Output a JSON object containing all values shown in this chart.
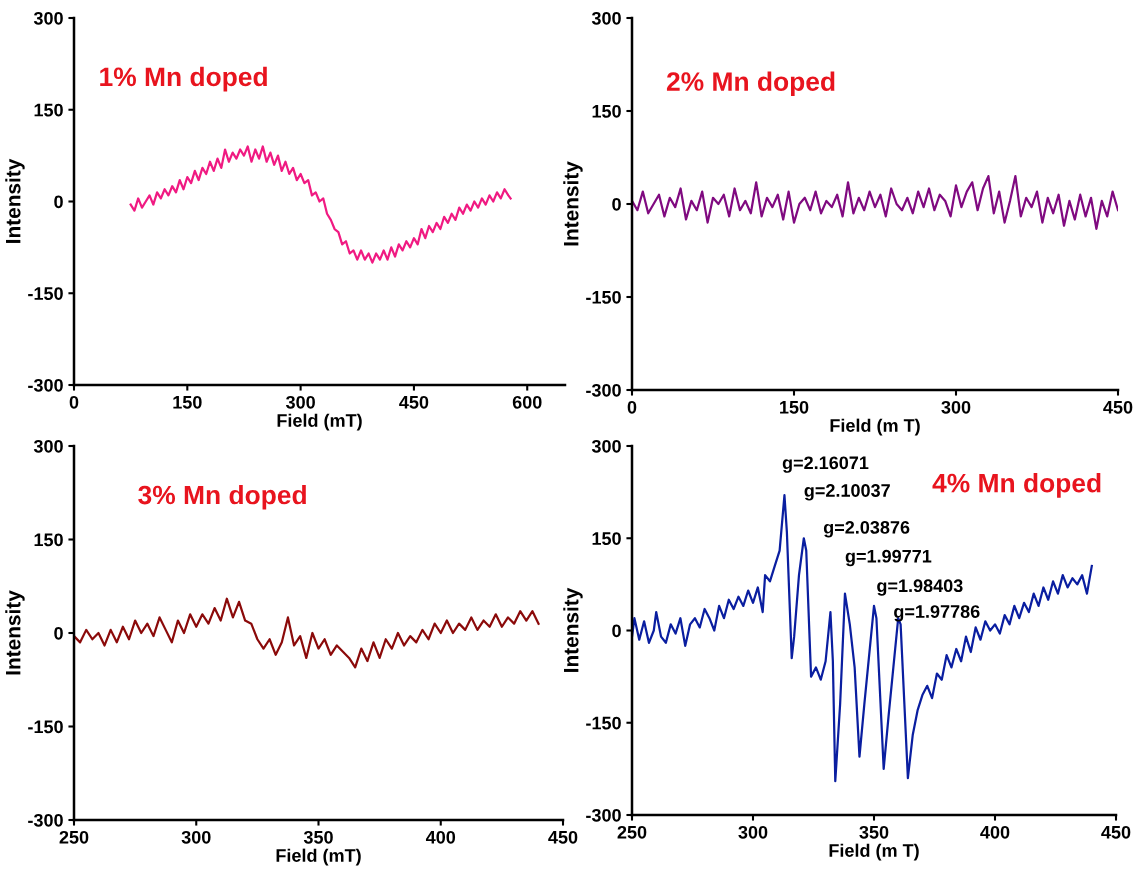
{
  "chart_data": [
    {
      "type": "line",
      "title": "1% Mn doped",
      "xlabel": "Field (mT)",
      "ylabel": "Intensity",
      "xlim": [
        0,
        650
      ],
      "xticks": [
        0,
        150,
        300,
        450,
        600
      ],
      "ylim": [
        -300,
        300
      ],
      "yticks": [
        -300,
        -150,
        0,
        150,
        300
      ],
      "grid": false,
      "legend": false,
      "marker": "none",
      "line_style": "solid",
      "series": [
        {
          "color": "#f01a82",
          "x": [
            75,
            80,
            85,
            90,
            95,
            100,
            105,
            110,
            115,
            120,
            125,
            130,
            135,
            140,
            145,
            150,
            155,
            160,
            165,
            170,
            175,
            180,
            185,
            190,
            195,
            200,
            205,
            210,
            215,
            220,
            225,
            230,
            235,
            240,
            245,
            250,
            255,
            260,
            265,
            270,
            275,
            280,
            285,
            290,
            295,
            300,
            305,
            310,
            315,
            320,
            325,
            330,
            335,
            340,
            345,
            350,
            355,
            360,
            365,
            370,
            375,
            380,
            385,
            390,
            395,
            400,
            405,
            410,
            415,
            420,
            425,
            430,
            435,
            440,
            445,
            450,
            455,
            460,
            465,
            470,
            475,
            480,
            485,
            490,
            495,
            500,
            505,
            510,
            515,
            520,
            525,
            530,
            535,
            540,
            545,
            550,
            555,
            560,
            565,
            570,
            575,
            578
          ],
          "values": [
            -5,
            -15,
            5,
            -10,
            0,
            10,
            -5,
            15,
            5,
            20,
            10,
            25,
            15,
            35,
            20,
            40,
            30,
            50,
            35,
            55,
            45,
            65,
            50,
            70,
            55,
            85,
            65,
            80,
            70,
            85,
            75,
            90,
            65,
            85,
            70,
            90,
            65,
            80,
            60,
            75,
            50,
            65,
            45,
            55,
            35,
            45,
            30,
            35,
            10,
            15,
            0,
            5,
            -20,
            -30,
            -45,
            -50,
            -70,
            -65,
            -85,
            -80,
            -95,
            -80,
            -95,
            -85,
            -100,
            -85,
            -95,
            -80,
            -95,
            -75,
            -90,
            -70,
            -80,
            -65,
            -75,
            -60,
            -70,
            -45,
            -60,
            -40,
            -50,
            -35,
            -45,
            -25,
            -35,
            -20,
            -30,
            -10,
            -20,
            -5,
            -15,
            0,
            -10,
            5,
            -5,
            10,
            0,
            15,
            5,
            20,
            10,
            5
          ]
        }
      ]
    },
    {
      "type": "line",
      "title": "2% Mn doped",
      "xlabel": "Field (m T)",
      "ylabel": "Intensity",
      "xlim": [
        0,
        450
      ],
      "xticks": [
        0,
        150,
        300,
        450
      ],
      "ylim": [
        -300,
        300
      ],
      "yticks": [
        -300,
        -150,
        0,
        150,
        300
      ],
      "grid": false,
      "legend": false,
      "marker": "none",
      "line_style": "solid",
      "series": [
        {
          "color": "#800a80",
          "x": [
            0,
            5,
            10,
            15,
            20,
            25,
            30,
            35,
            40,
            45,
            50,
            55,
            60,
            65,
            70,
            75,
            80,
            85,
            90,
            95,
            100,
            105,
            110,
            115,
            120,
            125,
            130,
            135,
            140,
            145,
            150,
            155,
            160,
            165,
            170,
            175,
            180,
            185,
            190,
            195,
            200,
            205,
            210,
            215,
            220,
            225,
            230,
            235,
            240,
            245,
            250,
            255,
            260,
            265,
            270,
            275,
            280,
            285,
            290,
            295,
            300,
            305,
            310,
            315,
            320,
            325,
            330,
            335,
            340,
            345,
            350,
            355,
            360,
            365,
            370,
            375,
            380,
            385,
            390,
            395,
            400,
            405,
            410,
            415,
            420,
            425,
            430,
            435,
            440,
            445,
            450
          ],
          "values": [
            5,
            -10,
            20,
            -15,
            0,
            15,
            -20,
            10,
            -5,
            25,
            -25,
            5,
            -10,
            20,
            -30,
            10,
            0,
            15,
            -20,
            25,
            -10,
            5,
            -15,
            35,
            -20,
            10,
            -5,
            15,
            -25,
            20,
            -30,
            0,
            10,
            -10,
            20,
            -15,
            5,
            -5,
            15,
            -20,
            35,
            -15,
            10,
            -10,
            20,
            -5,
            15,
            -20,
            25,
            0,
            -10,
            10,
            -15,
            20,
            -5,
            25,
            -10,
            15,
            5,
            -20,
            30,
            -5,
            20,
            35,
            -10,
            25,
            45,
            -15,
            20,
            -30,
            5,
            45,
            -20,
            10,
            -5,
            20,
            -30,
            10,
            -15,
            15,
            -35,
            5,
            -25,
            15,
            -20,
            10,
            -40,
            5,
            -20,
            20,
            -10
          ]
        }
      ]
    },
    {
      "type": "line",
      "title": "3% Mn doped",
      "xlabel": "Field (mT)",
      "ylabel": "Intensity",
      "xlim": [
        250,
        450
      ],
      "xticks": [
        250,
        300,
        350,
        400,
        450
      ],
      "ylim": [
        -300,
        300
      ],
      "yticks": [
        -300,
        -150,
        0,
        150,
        300
      ],
      "grid": false,
      "legend": false,
      "marker": "none",
      "line_style": "solid",
      "series": [
        {
          "color": "#8b0a0a",
          "x": [
            250,
            252.5,
            255,
            257.5,
            260,
            262.5,
            265,
            267.5,
            270,
            272.5,
            275,
            277.5,
            280,
            282.5,
            285,
            287.5,
            290,
            292.5,
            295,
            297.5,
            300,
            302.5,
            305,
            307.5,
            310,
            312.5,
            315,
            317.5,
            320,
            322.5,
            325,
            327.5,
            330,
            332.5,
            335,
            337.5,
            340,
            342.5,
            345,
            347.5,
            350,
            352.5,
            355,
            357.5,
            360,
            362.5,
            365,
            367.5,
            370,
            372.5,
            375,
            377.5,
            380,
            382.5,
            385,
            387.5,
            390,
            392.5,
            395,
            397.5,
            400,
            402.5,
            405,
            407.5,
            410,
            412.5,
            415,
            417.5,
            420,
            422.5,
            425,
            427.5,
            430,
            432.5,
            435,
            437.5,
            440
          ],
          "values": [
            -5,
            -15,
            5,
            -10,
            0,
            -20,
            5,
            -15,
            10,
            -10,
            20,
            0,
            15,
            -5,
            25,
            5,
            -15,
            20,
            0,
            30,
            10,
            30,
            15,
            40,
            20,
            55,
            25,
            50,
            20,
            15,
            -10,
            -25,
            -10,
            -35,
            -15,
            25,
            -20,
            -5,
            -40,
            0,
            -25,
            -10,
            -35,
            -20,
            -30,
            -40,
            -55,
            -25,
            -45,
            -15,
            -40,
            -10,
            -25,
            0,
            -20,
            -5,
            -15,
            5,
            -10,
            15,
            0,
            20,
            0,
            15,
            5,
            25,
            5,
            20,
            10,
            30,
            10,
            25,
            15,
            35,
            20,
            35,
            15
          ]
        }
      ]
    },
    {
      "type": "line",
      "title": "4% Mn doped",
      "xlabel": "Field (m T)",
      "ylabel": "Intensity",
      "xlim": [
        250,
        450
      ],
      "xticks": [
        250,
        300,
        350,
        400,
        450
      ],
      "ylim": [
        -300,
        300
      ],
      "yticks": [
        -300,
        -150,
        0,
        150,
        300
      ],
      "grid": false,
      "legend": false,
      "marker": "none",
      "line_style": "solid",
      "annotations": [
        "g=2.16071",
        "g=2.10037",
        "g=2.03876",
        "g=1.99771",
        "g=1.98403",
        "g=1.97786"
      ],
      "series": [
        {
          "color": "#0a1ea0",
          "x": [
            250,
            251,
            253,
            255,
            257,
            259,
            260,
            262,
            264,
            266,
            268,
            270,
            272,
            274,
            276,
            278,
            280,
            282,
            284,
            286,
            288,
            290,
            292,
            294,
            296,
            298,
            300,
            302,
            304,
            305,
            307,
            309,
            311,
            313,
            314,
            316,
            317,
            319,
            321,
            322,
            324,
            326,
            328,
            330,
            332,
            333,
            334,
            336,
            338,
            340,
            342,
            344,
            346,
            348,
            350,
            351,
            354,
            356,
            358,
            360,
            361,
            364,
            366,
            368,
            370,
            372,
            374,
            376,
            378,
            380,
            382,
            384,
            386,
            388,
            390,
            392,
            394,
            396,
            398,
            400,
            402,
            404,
            406,
            408,
            410,
            412,
            414,
            416,
            418,
            420,
            422,
            424,
            426,
            428,
            430,
            432,
            434,
            436,
            438,
            440
          ],
          "values": [
            -10,
            20,
            -15,
            15,
            -20,
            0,
            30,
            -10,
            -20,
            10,
            -5,
            20,
            -25,
            10,
            20,
            5,
            35,
            20,
            0,
            40,
            20,
            50,
            35,
            55,
            40,
            65,
            45,
            70,
            30,
            90,
            80,
            105,
            130,
            220,
            160,
            -45,
            -10,
            90,
            150,
            130,
            -75,
            -60,
            -80,
            -50,
            30,
            -50,
            -245,
            -120,
            60,
            10,
            -60,
            -205,
            -120,
            -40,
            40,
            20,
            -225,
            -140,
            -60,
            20,
            10,
            -240,
            -170,
            -130,
            -105,
            -90,
            -110,
            -70,
            -80,
            -40,
            -60,
            -30,
            -50,
            -10,
            -35,
            5,
            -15,
            15,
            0,
            10,
            -5,
            25,
            10,
            40,
            20,
            45,
            30,
            60,
            40,
            70,
            50,
            80,
            60,
            90,
            70,
            85,
            75,
            90,
            60,
            105
          ]
        }
      ]
    }
  ]
}
